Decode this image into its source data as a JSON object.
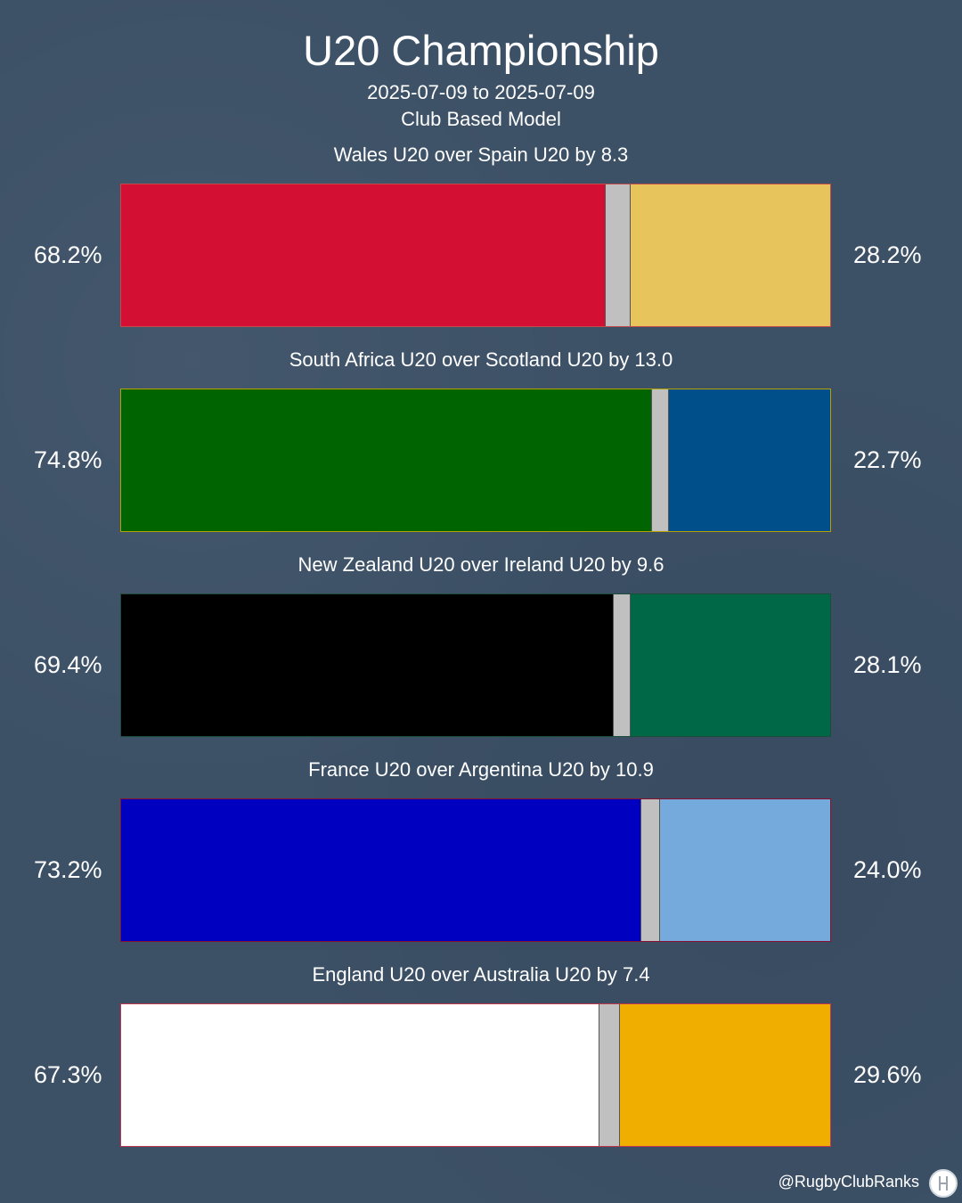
{
  "header": {
    "title": "U20 Championship",
    "dates": "2025-07-09 to 2025-07-09",
    "model": "Club Based Model"
  },
  "chart_data": {
    "type": "bar",
    "orientation": "horizontal-stacked",
    "matches": [
      {
        "label": "Wales U20 over Spain U20 by 8.3",
        "home": "Wales U20",
        "away": "Spain U20",
        "home_pct": 68.2,
        "away_pct": 28.2,
        "home_pct_label": "68.2%",
        "away_pct_label": "28.2%",
        "home_color": "#d31034",
        "away_color": "#e8c45c",
        "border_color": "#c44a4a"
      },
      {
        "label": "South Africa U20 over Scotland U20 by 13.0",
        "home": "South Africa U20",
        "away": "Scotland U20",
        "home_pct": 74.8,
        "away_pct": 22.7,
        "home_pct_label": "74.8%",
        "away_pct_label": "22.7%",
        "home_color": "#006400",
        "away_color": "#004f8a",
        "border_color": "#b5a100"
      },
      {
        "label": "New Zealand U20 over Ireland U20 by 9.6",
        "home": "New Zealand U20",
        "away": "Ireland U20",
        "home_pct": 69.4,
        "away_pct": 28.1,
        "home_pct_label": "69.4%",
        "away_pct_label": "28.1%",
        "home_color": "#000000",
        "away_color": "#006847",
        "border_color": "#1b4d3a"
      },
      {
        "label": "France U20 over Argentina U20 by 10.9",
        "home": "France U20",
        "away": "Argentina U20",
        "home_pct": 73.2,
        "away_pct": 24.0,
        "home_pct_label": "73.2%",
        "away_pct_label": "24.0%",
        "home_color": "#0000c0",
        "away_color": "#74aadc",
        "border_color": "#8a1030"
      },
      {
        "label": "England U20 over Australia U20 by 7.4",
        "home": "England U20",
        "away": "Australia U20",
        "home_pct": 67.3,
        "away_pct": 29.6,
        "home_pct_label": "67.3%",
        "away_pct_label": "29.6%",
        "home_color": "#ffffff",
        "away_color": "#f0ae00",
        "border_color": "#c0364a"
      }
    ],
    "draw_color": "#c0c0c0"
  },
  "footer": {
    "handle": "@RugbyClubRanks",
    "logo_icon": "rugby-posts-icon"
  }
}
